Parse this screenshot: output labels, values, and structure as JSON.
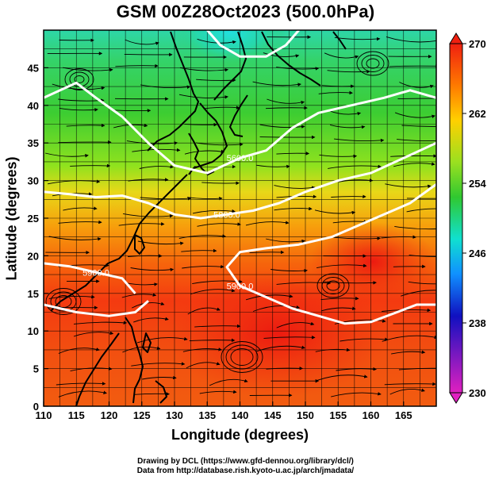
{
  "title": "GSM 00Z28Oct2023 (500.0hPa)",
  "chart_data": {
    "type": "heatmap",
    "title": "GSM 00Z28Oct2023 (500.0hPa)",
    "xlabel": "Longitude (degrees)",
    "ylabel": "Latitude  (degrees)",
    "xlim": [
      110,
      170
    ],
    "ylim": [
      0,
      50
    ],
    "x_ticks": [
      "110",
      "115",
      "120",
      "125",
      "130",
      "135",
      "140",
      "145",
      "150",
      "155",
      "160",
      "165"
    ],
    "y_ticks": [
      "0",
      "5",
      "10",
      "15",
      "20",
      "25",
      "30",
      "35",
      "40",
      "45"
    ],
    "colorbar": {
      "ticks": [
        "270",
        "262",
        "254",
        "246",
        "238",
        "230"
      ],
      "range": [
        230,
        270
      ],
      "colors": [
        "#e020c0",
        "#1010c0",
        "#1090ff",
        "#10e0d0",
        "#30c830",
        "#9ae020",
        "#ffd000",
        "#ff7a00",
        "#f02010"
      ]
    },
    "contours": [
      {
        "label": "5600.0",
        "points": [
          [
            110,
            41
          ],
          [
            115,
            43
          ],
          [
            118,
            41
          ],
          [
            122,
            38.5
          ],
          [
            126,
            35
          ],
          [
            130,
            32
          ],
          [
            135,
            31
          ],
          [
            140,
            33
          ],
          [
            144,
            34
          ],
          [
            148,
            37
          ],
          [
            152,
            39
          ],
          [
            157,
            40
          ],
          [
            162,
            41
          ],
          [
            166,
            42
          ],
          [
            170,
            41
          ]
        ]
      },
      {
        "label": "5800.0",
        "points": [
          [
            110,
            28.5
          ],
          [
            114,
            28.2
          ],
          [
            118,
            27.8
          ],
          [
            122,
            28
          ],
          [
            126,
            27
          ],
          [
            130,
            25.5
          ],
          [
            134,
            25
          ],
          [
            138,
            25.5
          ],
          [
            142,
            26
          ],
          [
            146,
            27
          ],
          [
            150,
            28.5
          ],
          [
            155,
            30
          ],
          [
            160,
            31
          ],
          [
            165,
            33
          ],
          [
            170,
            35
          ]
        ]
      },
      {
        "label": "5900.0",
        "points": [
          [
            110,
            19
          ],
          [
            114,
            18.6
          ],
          [
            118,
            17.8
          ],
          [
            122,
            17
          ],
          [
            124,
            15
          ]
        ]
      },
      {
        "label": "5900.0",
        "points": [
          [
            170,
            29.5
          ],
          [
            166,
            27
          ],
          [
            162,
            25.5
          ],
          [
            158,
            24
          ],
          [
            154,
            22.5
          ],
          [
            149,
            21.5
          ],
          [
            144,
            21
          ],
          [
            140,
            20.5
          ],
          [
            138,
            18.5
          ],
          [
            140,
            16
          ],
          [
            144,
            14.5
          ],
          [
            148,
            13
          ],
          [
            152,
            12
          ],
          [
            156,
            11
          ],
          [
            160,
            11.2
          ],
          [
            164,
            12.5
          ],
          [
            167,
            13.5
          ],
          [
            170,
            13.5
          ]
        ]
      },
      {
        "points": [
          [
            110,
            13.5
          ],
          [
            115,
            12.5
          ],
          [
            120,
            12
          ],
          [
            124,
            12.5
          ],
          [
            126,
            14
          ]
        ]
      },
      {
        "points": [
          [
            135,
            50
          ],
          [
            137,
            48
          ],
          [
            140,
            46.5
          ],
          [
            144,
            46.5
          ],
          [
            147,
            48
          ],
          [
            149,
            50
          ]
        ]
      }
    ]
  },
  "credits": {
    "line1": "Drawing by DCL (https://www.gfd-dennou.org/library/dcl/)",
    "line2": "Data from http://database.rish.kyoto-u.ac.jp/arch/jmadata/"
  }
}
